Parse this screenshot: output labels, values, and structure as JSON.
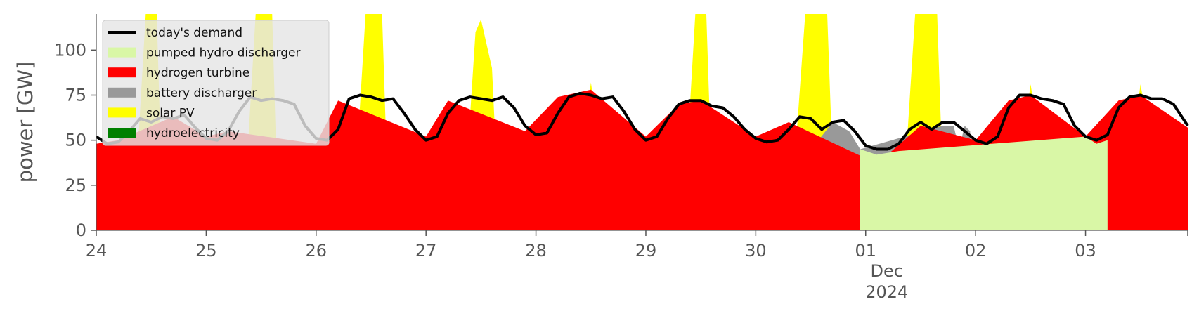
{
  "chart_data": {
    "type": "area",
    "ylabel": "power [GW]",
    "xlabel": "",
    "ylim": [
      0,
      120
    ],
    "yticks": [
      0,
      25,
      50,
      75,
      100
    ],
    "xlim_days": [
      0,
      9.93
    ],
    "xticks": [
      {
        "day": 0,
        "label": "24"
      },
      {
        "day": 1,
        "label": "25"
      },
      {
        "day": 2,
        "label": "26"
      },
      {
        "day": 3,
        "label": "27"
      },
      {
        "day": 4,
        "label": "28"
      },
      {
        "day": 5,
        "label": "29"
      },
      {
        "day": 6,
        "label": "30"
      },
      {
        "day": 7,
        "label": "01",
        "month": "Dec",
        "year": "2024"
      },
      {
        "day": 8,
        "label": "02"
      },
      {
        "day": 9,
        "label": "03"
      }
    ],
    "legend_position": "top-left",
    "series": [
      {
        "name": "hydroelectricity",
        "color": "#008000",
        "x": [
          0,
          3.0,
          3.5,
          5.0,
          5.5,
          7.0,
          7.5,
          9.0,
          9.6,
          9.93
        ],
        "y": [
          1.5,
          2.0,
          2.5,
          2.0,
          2.5,
          1.5,
          2.0,
          2.0,
          2.5,
          2.0
        ]
      },
      {
        "name": "solar PV",
        "color": "#ffff00",
        "x": [
          0.3,
          0.35,
          0.45,
          0.55,
          0.6,
          1.3,
          1.35,
          1.45,
          1.6,
          1.65,
          2.3,
          2.35,
          2.45,
          2.6,
          2.65,
          3.3,
          3.35,
          3.45,
          3.5,
          3.6,
          3.65,
          4.3,
          4.35,
          4.5,
          4.65,
          4.7,
          5.3,
          5.35,
          5.45,
          5.55,
          5.6,
          6.3,
          6.35,
          6.45,
          6.65,
          6.7,
          7.3,
          7.35,
          7.45,
          7.65,
          7.7,
          8.3,
          8.35,
          8.5,
          8.65,
          8.7,
          9.3,
          9.35,
          9.5,
          9.65,
          9.7
        ],
        "y": [
          0,
          16,
          120,
          120,
          16,
          0,
          16,
          120,
          120,
          16,
          0,
          20,
          120,
          120,
          25,
          0,
          16,
          110,
          117,
          90,
          25,
          0,
          10,
          82,
          22,
          0,
          0,
          16,
          120,
          120,
          27,
          0,
          35,
          120,
          120,
          35,
          0,
          25,
          120,
          120,
          30,
          0,
          12,
          81,
          25,
          0,
          0,
          12,
          81,
          30,
          0
        ]
      },
      {
        "name": "battery discharger",
        "color": "#999999",
        "x": [
          0.65,
          0.8,
          0.95,
          1.65,
          1.8,
          1.95,
          2.6,
          2.7,
          2.85,
          2.9,
          3.0,
          3.8,
          3.9,
          3.95,
          5.85,
          5.88,
          5.92,
          6.7,
          6.85,
          6.95,
          7.7,
          7.8,
          7.85,
          7.9,
          7.95
        ],
        "y": [
          28,
          32,
          38,
          38,
          40,
          42,
          35,
          33,
          42,
          35,
          42,
          5,
          48,
          0,
          0,
          50,
          0,
          60,
          55,
          45,
          58,
          58,
          45,
          58,
          55
        ]
      },
      {
        "name": "hydrogen turbine",
        "color": "#ff0000",
        "x": [
          0,
          0.2,
          0.7,
          1.0,
          1.2,
          2.0,
          2.2,
          3.0,
          3.2,
          3.9,
          4.2,
          4.5,
          5.0,
          5.3,
          5.5,
          6.0,
          6.3,
          7.0,
          7.2,
          7.5,
          8.0,
          8.3,
          8.5,
          9.0,
          9.3,
          9.5,
          9.93
        ],
        "y": [
          48,
          50,
          63,
          52,
          55,
          48,
          72,
          52,
          72,
          55,
          74,
          78,
          52,
          70,
          72,
          52,
          60,
          40,
          42,
          58,
          50,
          72,
          75,
          52,
          72,
          75,
          57
        ]
      },
      {
        "name": "pumped hydro discharger",
        "color": "#d9f7a6",
        "x": [
          6.95,
          7.1,
          7.3,
          9.0,
          9.1,
          9.2
        ],
        "y": [
          45,
          42,
          44,
          52,
          48,
          50
        ]
      },
      {
        "name": "today's demand",
        "color": "#000000",
        "type": "line",
        "x": [
          0,
          0.1,
          0.2,
          0.3,
          0.4,
          0.5,
          0.6,
          0.7,
          0.8,
          0.9,
          1.0,
          1.1,
          1.2,
          1.3,
          1.4,
          1.5,
          1.6,
          1.7,
          1.8,
          1.9,
          2.0,
          2.1,
          2.2,
          2.3,
          2.4,
          2.5,
          2.6,
          2.7,
          2.8,
          2.9,
          3.0,
          3.1,
          3.2,
          3.3,
          3.4,
          3.5,
          3.6,
          3.7,
          3.8,
          3.9,
          4.0,
          4.1,
          4.2,
          4.3,
          4.4,
          4.5,
          4.6,
          4.7,
          4.8,
          4.9,
          5.0,
          5.1,
          5.2,
          5.3,
          5.4,
          5.5,
          5.6,
          5.7,
          5.8,
          5.9,
          6.0,
          6.1,
          6.2,
          6.3,
          6.4,
          6.5,
          6.6,
          6.7,
          6.8,
          6.9,
          7.0,
          7.1,
          7.2,
          7.3,
          7.4,
          7.5,
          7.6,
          7.7,
          7.8,
          7.9,
          8.0,
          8.1,
          8.2,
          8.3,
          8.4,
          8.5,
          8.6,
          8.7,
          8.8,
          8.9,
          9.0,
          9.1,
          9.2,
          9.3,
          9.4,
          9.5,
          9.6,
          9.7,
          9.8,
          9.93
        ],
        "y": [
          52,
          48,
          49,
          55,
          62,
          60,
          63,
          62,
          64,
          57,
          51,
          50,
          55,
          66,
          74,
          72,
          73,
          72,
          70,
          58,
          51,
          50,
          56,
          73,
          75,
          74,
          72,
          73,
          65,
          56,
          50,
          52,
          65,
          72,
          74,
          73,
          72,
          74,
          68,
          58,
          53,
          54,
          65,
          74,
          76,
          75,
          73,
          74,
          66,
          56,
          50,
          52,
          62,
          70,
          72,
          72,
          69,
          68,
          63,
          56,
          51,
          49,
          50,
          56,
          63,
          62,
          56,
          60,
          61,
          55,
          47,
          45,
          45,
          48,
          56,
          60,
          56,
          60,
          60,
          55,
          50,
          48,
          52,
          68,
          75,
          75,
          73,
          72,
          70,
          58,
          52,
          50,
          53,
          68,
          74,
          75,
          73,
          73,
          70,
          58
        ]
      }
    ],
    "legend_order": [
      "today's demand",
      "pumped hydro discharger",
      "hydrogen turbine",
      "battery discharger",
      "solar PV",
      "hydroelectricity"
    ]
  }
}
